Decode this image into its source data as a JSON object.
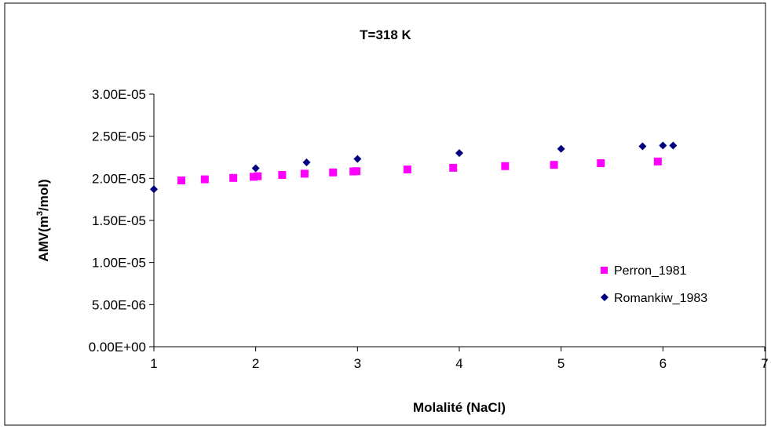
{
  "chart_data": {
    "type": "scatter",
    "title": "T=318 K",
    "xlabel": "Molalité (NaCl)",
    "ylabel_main": "AMV(m",
    "ylabel_sup": "3",
    "ylabel_tail": "/mol)",
    "xlim": [
      1,
      7
    ],
    "ylim": [
      0,
      3e-05
    ],
    "x_ticks": [
      1,
      2,
      3,
      4,
      5,
      6,
      7
    ],
    "x_tick_labels": [
      "1",
      "2",
      "3",
      "4",
      "5",
      "6",
      "7"
    ],
    "y_ticks": [
      0,
      5e-06,
      1e-05,
      1.5e-05,
      2e-05,
      2.5e-05,
      3e-05
    ],
    "y_tick_labels": [
      "0.00E+00",
      "5.00E-06",
      "1.00E-05",
      "1.50E-05",
      "2.00E-05",
      "2.50E-05",
      "3.00E-05"
    ],
    "grid": false,
    "legend_position": "right",
    "series": [
      {
        "name": "Perron_1981",
        "marker": "square",
        "color": "#FF00FF",
        "x": [
          1.27,
          1.5,
          1.78,
          1.98,
          2.02,
          2.26,
          2.48,
          2.76,
          2.96,
          2.99,
          3.49,
          3.94,
          4.45,
          4.93,
          5.39,
          5.95
        ],
        "y": [
          1.975e-05,
          1.988e-05,
          2.005e-05,
          2.018e-05,
          2.025e-05,
          2.04e-05,
          2.055e-05,
          2.07e-05,
          2.082e-05,
          2.085e-05,
          2.105e-05,
          2.125e-05,
          2.145e-05,
          2.16e-05,
          2.18e-05,
          2.2e-05
        ]
      },
      {
        "name": "Romankiw_1983",
        "marker": "diamond",
        "color": "#000080",
        "x": [
          1.0,
          2.0,
          2.5,
          3.0,
          4.0,
          5.0,
          5.8,
          6.0,
          6.1
        ],
        "y": [
          1.87e-05,
          2.12e-05,
          2.19e-05,
          2.23e-05,
          2.3e-05,
          2.35e-05,
          2.38e-05,
          2.39e-05,
          2.39e-05
        ]
      }
    ]
  }
}
